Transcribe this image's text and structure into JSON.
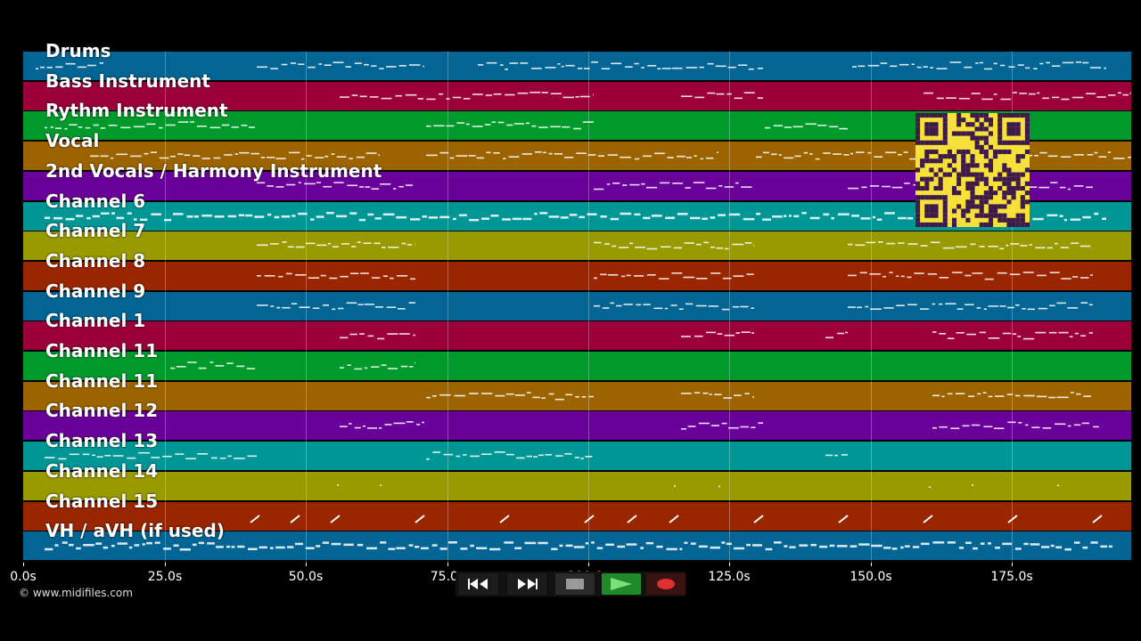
{
  "tracks": [
    {
      "name": "Drums",
      "color": "#026593"
    },
    {
      "name": "Bass Instrument",
      "color": "#9b0038"
    },
    {
      "name": "Rythm Instrument",
      "color": "#009a2c"
    },
    {
      "name": "Vocal",
      "color": "#9c6400"
    },
    {
      "name": "2nd Vocals / Harmony Instrument",
      "color": "#6a0099"
    },
    {
      "name": "Channel 6",
      "color": "#009696"
    },
    {
      "name": "Channel 7",
      "color": "#999900"
    },
    {
      "name": "Channel 8",
      "color": "#992600"
    },
    {
      "name": "Channel 9",
      "color": "#026593"
    },
    {
      "name": "Channel 1",
      "color": "#9b0038"
    },
    {
      "name": "Channel 11",
      "color": "#009a2c"
    },
    {
      "name": "Channel 11",
      "color": "#9c6400"
    },
    {
      "name": "Channel 12",
      "color": "#6a0099"
    },
    {
      "name": "Channel 13",
      "color": "#009696"
    },
    {
      "name": "Channel 14",
      "color": "#999900"
    },
    {
      "name": "Channel 15",
      "color": "#992600"
    },
    {
      "name": "VH / aVH (if used)",
      "color": "#026593"
    }
  ],
  "axis": {
    "ticks": [
      "0.0s",
      "25.0s",
      "50.0s",
      "75.0s",
      "100.0s",
      "125.0s",
      "150.0s",
      "175.0s"
    ]
  },
  "copyright": "© www.midifiles.com",
  "transport": {
    "rewind_icon": "rewind-icon",
    "fast_forward_icon": "fast-forward-icon",
    "stop_icon": "stop-icon",
    "play_icon": "play-icon",
    "record_icon": "record-icon",
    "play_color": "#1f8a2a",
    "record_color": "#e03030"
  },
  "qr_code": {
    "color": "#f6e03a",
    "ink": "#3d1a4a"
  }
}
